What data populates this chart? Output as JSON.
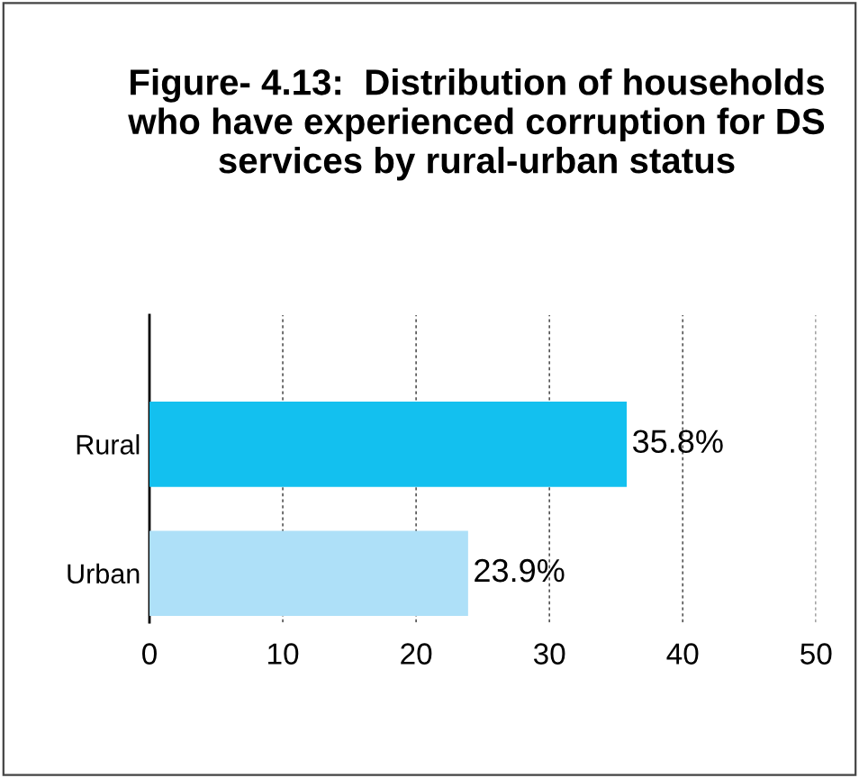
{
  "chart_data": {
    "type": "bar",
    "orientation": "horizontal",
    "title": "Figure- 4.13:  Distribution of households who have experienced corruption for DS services by rural-urban status",
    "categories": [
      "Rural",
      "Urban"
    ],
    "values": [
      35.8,
      23.9
    ],
    "colors": [
      "#13c0ef",
      "#aee0f8"
    ],
    "value_labels": [
      "35.8%",
      "23.9%"
    ],
    "xlim": [
      0,
      50
    ],
    "xticks": [
      0,
      10,
      20,
      30,
      40,
      50
    ],
    "grid": "x"
  }
}
